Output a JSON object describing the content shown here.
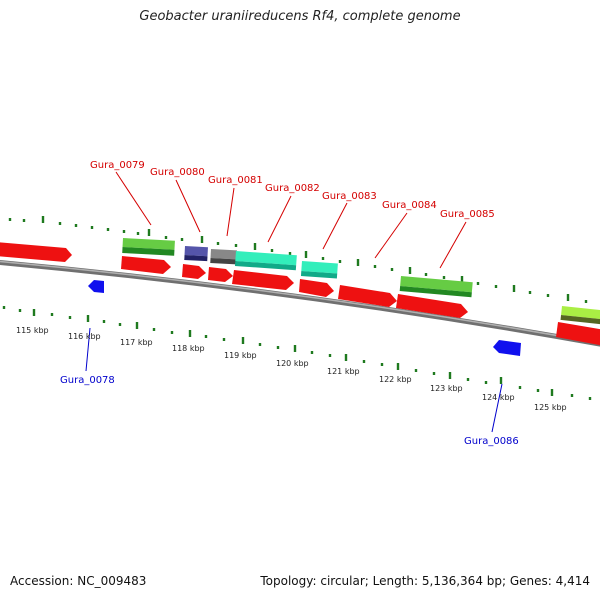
{
  "title": "Geobacter uraniireducens Rf4, complete genome",
  "footer": {
    "accession": "Accession: NC_009483",
    "topology": "Topology: circular; Length: 5,136,364 bp; Genes: 4,414"
  },
  "colors": {
    "forward_label": "#d40000",
    "reverse_label": "#0000cc",
    "forward_gene": "#ee1111",
    "reverse_gene": "#1010ee",
    "tick": "#1f7a1f",
    "backbone": "#808080"
  },
  "chart_data": {
    "type": "genome-map",
    "unit": "kbp",
    "tick_labels": [
      "115 kbp",
      "116 kbp",
      "117 kbp",
      "118 kbp",
      "119 kbp",
      "120 kbp",
      "121 kbp",
      "122 kbp",
      "123 kbp",
      "124 kbp",
      "125 kbp"
    ],
    "forward_gene_labels": [
      "Gura_0079",
      "Gura_0080",
      "Gura_0081",
      "Gura_0082",
      "Gura_0083",
      "Gura_0084",
      "Gura_0085"
    ],
    "reverse_gene_labels": [
      "Gura_0078",
      "Gura_0086"
    ]
  }
}
